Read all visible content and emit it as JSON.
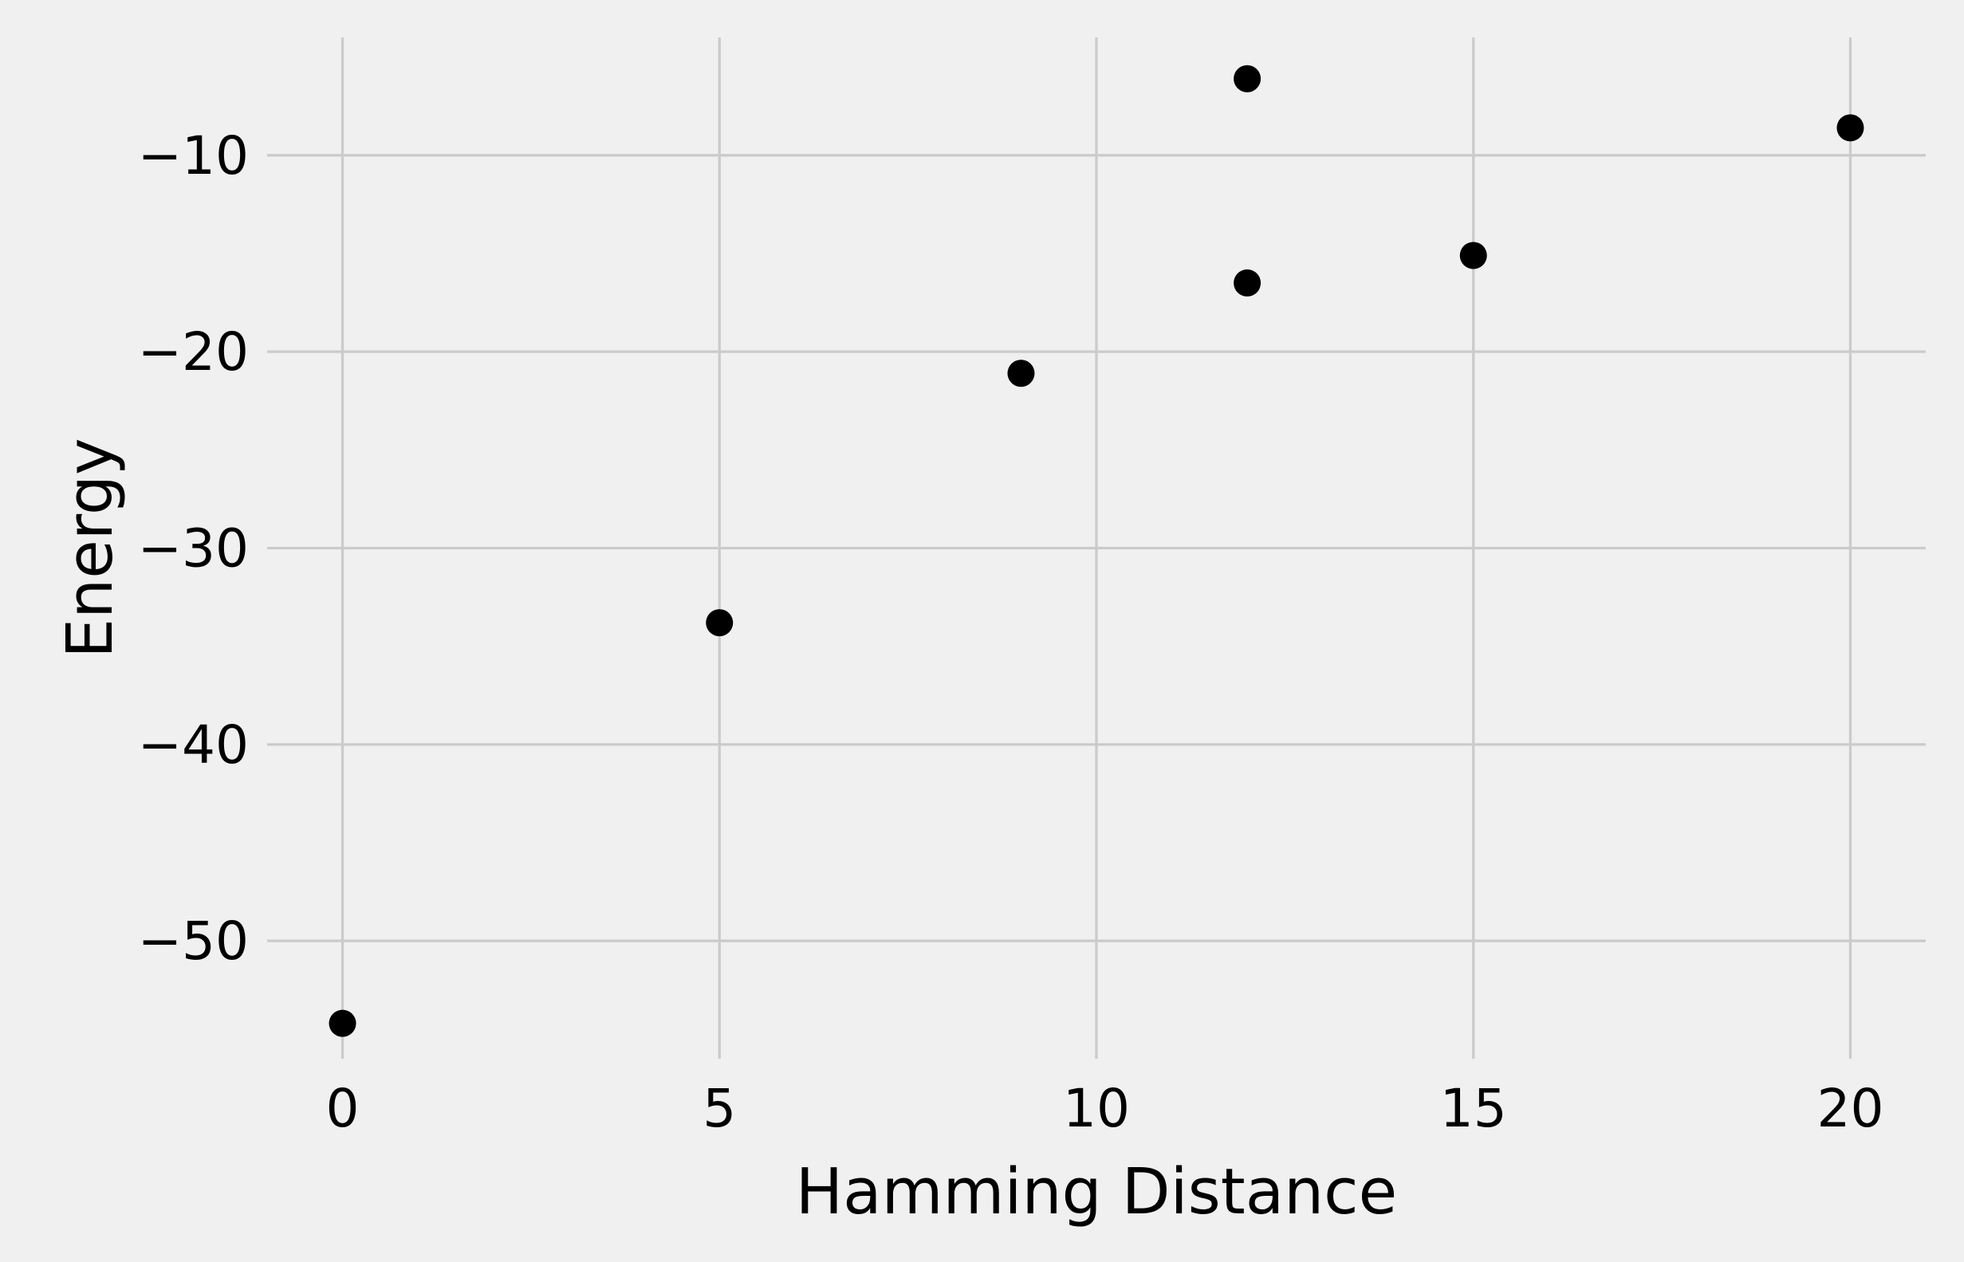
{
  "chart_data": {
    "type": "scatter",
    "title": "",
    "xlabel": "Hamming Distance",
    "ylabel": "Energy",
    "xlim": [
      -1,
      21
    ],
    "ylim": [
      -56,
      -4
    ],
    "xticks": [
      0,
      5,
      10,
      15,
      20
    ],
    "xtick_labels": [
      "0",
      "5",
      "10",
      "15",
      "20"
    ],
    "yticks": [
      -50,
      -40,
      -30,
      -20,
      -10
    ],
    "ytick_labels": [
      "−50",
      "−40",
      "−30",
      "−20",
      "−10"
    ],
    "grid": true,
    "series": [
      {
        "marker_color": "#000000",
        "points": [
          {
            "x": 0,
            "y": -54.2
          },
          {
            "x": 5,
            "y": -33.8
          },
          {
            "x": 9,
            "y": -21.1
          },
          {
            "x": 12,
            "y": -6.1
          },
          {
            "x": 12,
            "y": -16.5
          },
          {
            "x": 15,
            "y": -15.1
          },
          {
            "x": 20,
            "y": -8.6
          }
        ]
      }
    ]
  },
  "colors": {
    "background": "#f0f0f0",
    "grid": "#cbcbcb",
    "marker": "#000000"
  }
}
